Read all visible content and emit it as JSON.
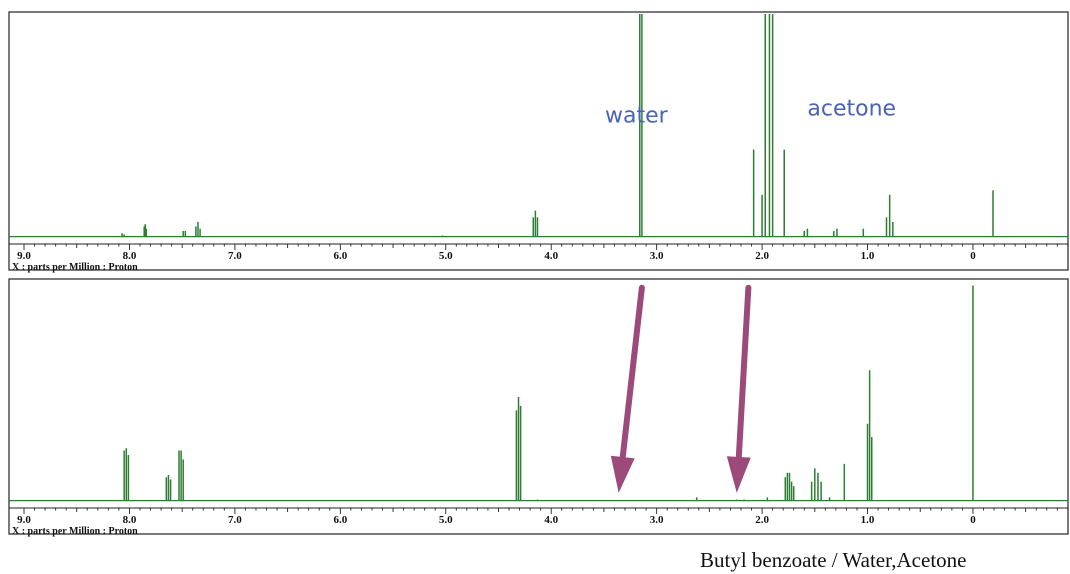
{
  "chart_data": [
    {
      "type": "line",
      "title": "",
      "xlabel": "X : parts per Million : Proton",
      "ylabel": "",
      "xlim": [
        9.0,
        -0.9
      ],
      "x_reversed": true,
      "xticks": [
        "9.0",
        "8.0",
        "7.0",
        "6.0",
        "5.0",
        "4.0",
        "3.0",
        "2.0",
        "1.0",
        "0"
      ],
      "xtick_values": [
        9.0,
        8.0,
        7.0,
        6.0,
        5.0,
        4.0,
        3.0,
        2.0,
        1.0,
        0.0
      ],
      "ylim": [
        0,
        100
      ],
      "baseline": 1.5,
      "line_color": "#2e7d32",
      "annotation_color": "#4a63b5",
      "annotations": [
        {
          "text": "water",
          "x": 3.49,
          "y": 52
        },
        {
          "text": "acetone",
          "x": 1.57,
          "y": 55
        }
      ],
      "peaks": [
        {
          "x": 8.07,
          "y": 3
        },
        {
          "x": 8.05,
          "y": 2.5
        },
        {
          "x": 7.86,
          "y": 6
        },
        {
          "x": 7.85,
          "y": 7
        },
        {
          "x": 7.84,
          "y": 5
        },
        {
          "x": 7.49,
          "y": 4
        },
        {
          "x": 7.47,
          "y": 4
        },
        {
          "x": 7.37,
          "y": 6
        },
        {
          "x": 7.35,
          "y": 8
        },
        {
          "x": 7.33,
          "y": 5
        },
        {
          "x": 5.03,
          "y": 2
        },
        {
          "x": 4.17,
          "y": 10
        },
        {
          "x": 4.15,
          "y": 13
        },
        {
          "x": 4.13,
          "y": 10
        },
        {
          "x": 3.16,
          "y": 100
        },
        {
          "x": 3.14,
          "y": 100
        },
        {
          "x": 2.08,
          "y": 40
        },
        {
          "x": 2.0,
          "y": 20
        },
        {
          "x": 1.97,
          "y": 100
        },
        {
          "x": 1.93,
          "y": 100
        },
        {
          "x": 1.9,
          "y": 100
        },
        {
          "x": 1.79,
          "y": 40
        },
        {
          "x": 1.6,
          "y": 4
        },
        {
          "x": 1.57,
          "y": 5
        },
        {
          "x": 1.32,
          "y": 4
        },
        {
          "x": 1.29,
          "y": 5
        },
        {
          "x": 1.04,
          "y": 5
        },
        {
          "x": 0.82,
          "y": 10
        },
        {
          "x": 0.79,
          "y": 20
        },
        {
          "x": 0.76,
          "y": 8
        },
        {
          "x": -0.19,
          "y": 22
        }
      ]
    },
    {
      "type": "line",
      "title": "",
      "xlabel": "X : parts per Million : Proton",
      "ylabel": "",
      "xlim": [
        9.0,
        -0.9
      ],
      "x_reversed": true,
      "xticks": [
        "9.0",
        "8.0",
        "7.0",
        "6.0",
        "5.0",
        "4.0",
        "3.0",
        "2.0",
        "1.0",
        "0"
      ],
      "xtick_values": [
        9.0,
        8.0,
        7.0,
        6.0,
        5.0,
        4.0,
        3.0,
        2.0,
        1.0,
        0.0
      ],
      "ylim": [
        0,
        100
      ],
      "baseline": 1.5,
      "line_color": "#2e7d32",
      "arrow_color": "#9c4a7a",
      "arrows": [
        {
          "from": [
            3.14,
            97
          ],
          "to": [
            3.36,
            5
          ]
        },
        {
          "from": [
            2.13,
            97
          ],
          "to": [
            2.24,
            5
          ]
        }
      ],
      "peaks": [
        {
          "x": 8.05,
          "y": 24
        },
        {
          "x": 8.03,
          "y": 25
        },
        {
          "x": 8.01,
          "y": 22
        },
        {
          "x": 7.65,
          "y": 12
        },
        {
          "x": 7.63,
          "y": 13
        },
        {
          "x": 7.61,
          "y": 11
        },
        {
          "x": 7.53,
          "y": 24
        },
        {
          "x": 7.51,
          "y": 24
        },
        {
          "x": 7.49,
          "y": 20
        },
        {
          "x": 4.33,
          "y": 42
        },
        {
          "x": 4.31,
          "y": 48
        },
        {
          "x": 4.29,
          "y": 44
        },
        {
          "x": 4.13,
          "y": 2
        },
        {
          "x": 2.62,
          "y": 3
        },
        {
          "x": 2.24,
          "y": 2
        },
        {
          "x": 2.17,
          "y": 2
        },
        {
          "x": 1.95,
          "y": 3
        },
        {
          "x": 1.78,
          "y": 12
        },
        {
          "x": 1.76,
          "y": 14
        },
        {
          "x": 1.74,
          "y": 14
        },
        {
          "x": 1.72,
          "y": 10
        },
        {
          "x": 1.7,
          "y": 8
        },
        {
          "x": 1.53,
          "y": 10
        },
        {
          "x": 1.5,
          "y": 16
        },
        {
          "x": 1.47,
          "y": 14
        },
        {
          "x": 1.44,
          "y": 10
        },
        {
          "x": 1.36,
          "y": 3
        },
        {
          "x": 1.22,
          "y": 18
        },
        {
          "x": 1.0,
          "y": 36
        },
        {
          "x": 0.98,
          "y": 60
        },
        {
          "x": 0.96,
          "y": 30
        },
        {
          "x": 0.0,
          "y": 98
        }
      ]
    }
  ],
  "footer": {
    "caption": "Butyl benzoate / Water,Acetone"
  }
}
